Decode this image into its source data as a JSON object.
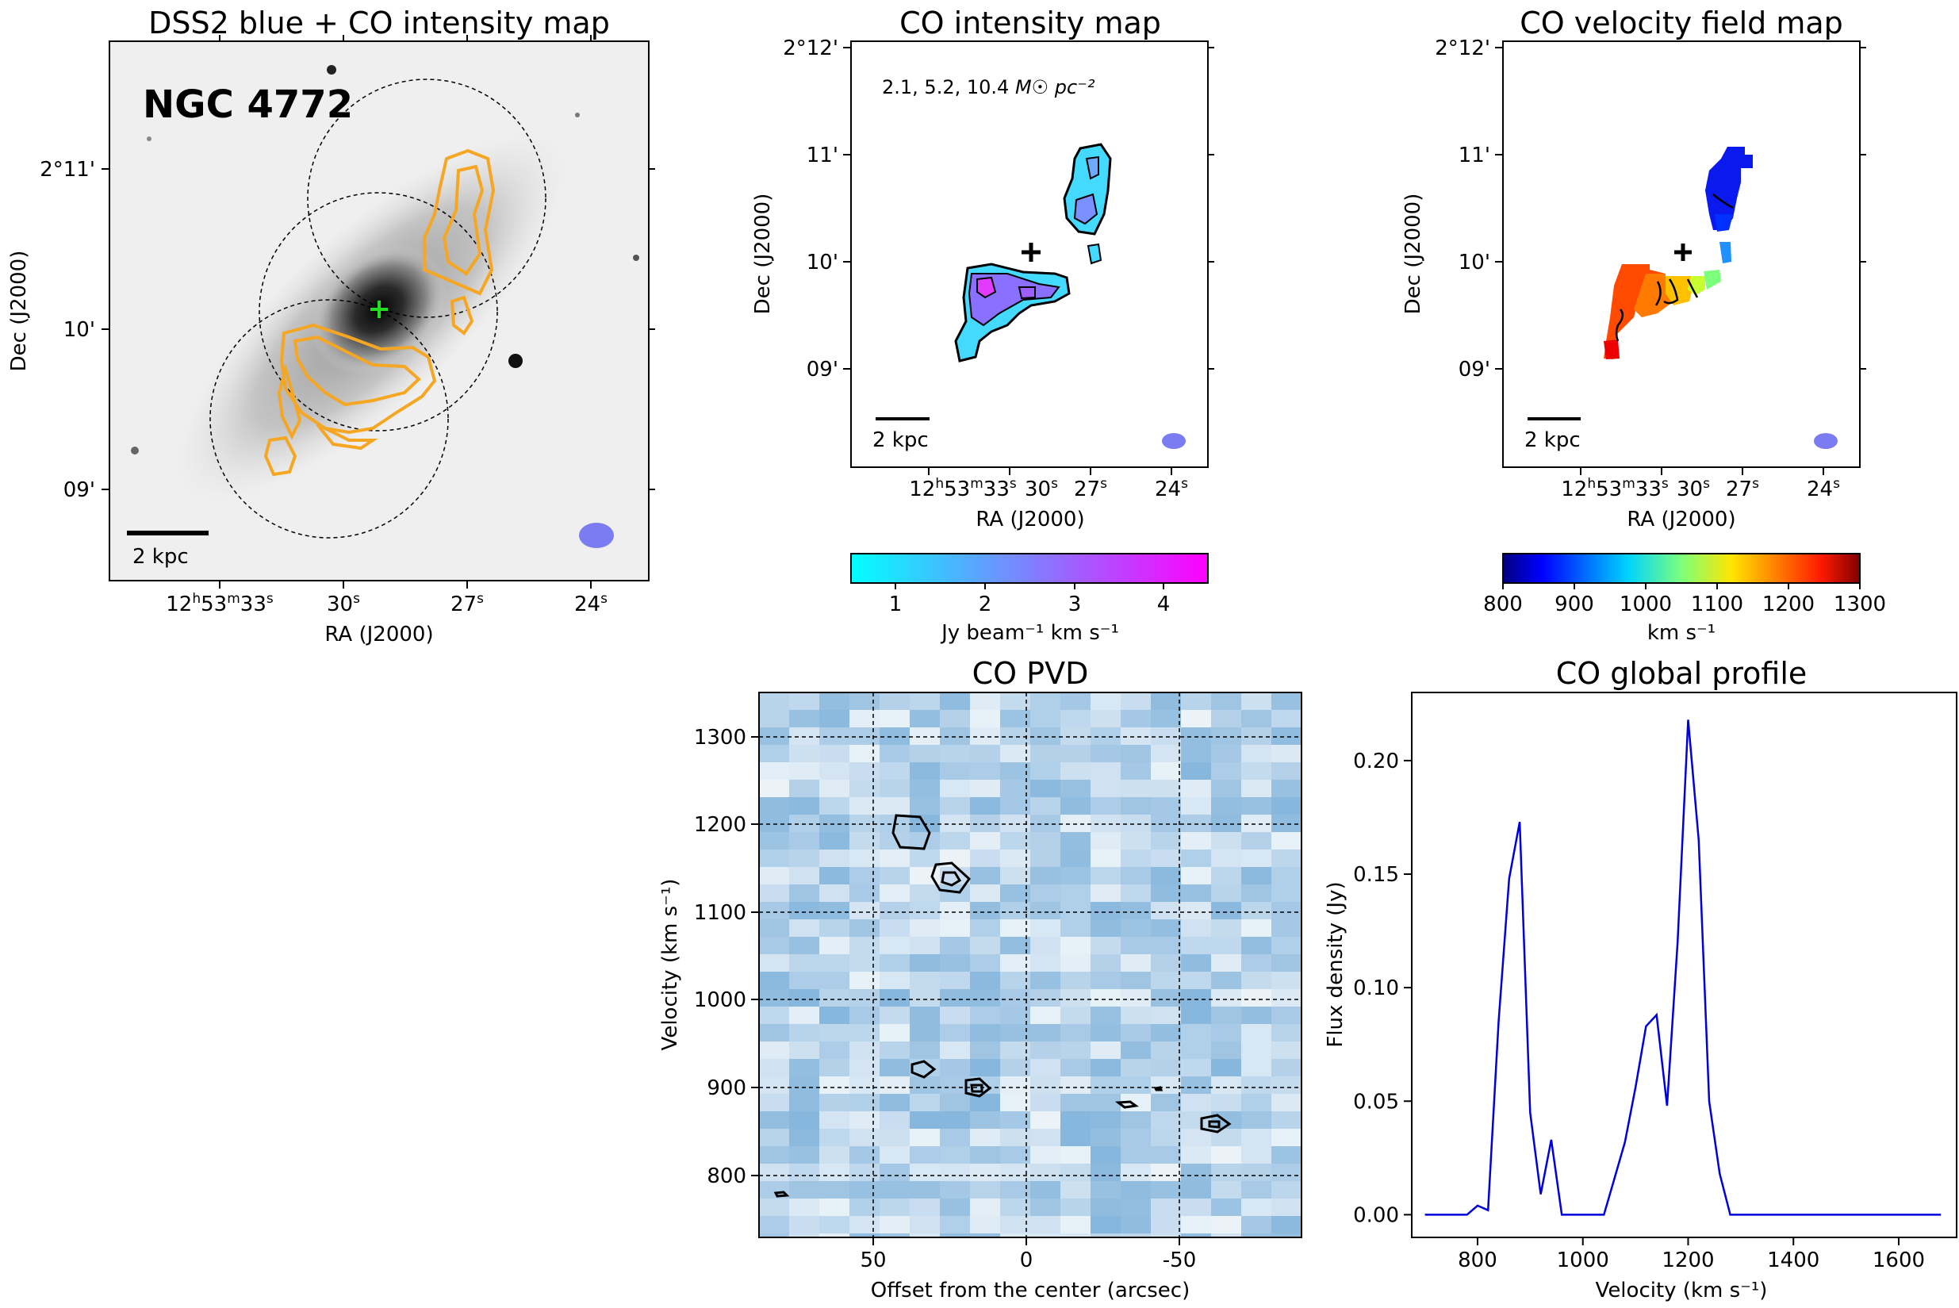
{
  "panels": {
    "dss": {
      "title": "DSS2 blue + CO intensity map",
      "galaxy": "NGC 4772",
      "xlabel": "RA (J2000)",
      "ylabel": "Dec (J2000)",
      "yticks": [
        "2°11'",
        "10'",
        "09'"
      ],
      "scalebar": "2 kpc"
    },
    "intensity": {
      "title": "CO intensity map",
      "contour_note": "2.1, 5.2, 10.4",
      "contour_unit": "M☉ pc⁻²",
      "xlabel": "RA (J2000)",
      "ylabel": "Dec (J2000)",
      "yticks": [
        "2°12'",
        "11'",
        "10'",
        "09'"
      ],
      "scalebar": "2 kpc",
      "colorbar_ticks": [
        "1",
        "2",
        "3",
        "4"
      ],
      "colorbar_label": "Jy beam⁻¹ km s⁻¹"
    },
    "velocity": {
      "title": "CO velocity field map",
      "xlabel": "RA (J2000)",
      "ylabel": "Dec (J2000)",
      "yticks": [
        "2°12'",
        "11'",
        "10'",
        "09'"
      ],
      "scalebar": "2 kpc",
      "colorbar_ticks": [
        "800",
        "900",
        "1000",
        "1100",
        "1200",
        "1300"
      ],
      "colorbar_label": "km s⁻¹"
    },
    "pvd": {
      "title": "CO PVD",
      "xlabel": "Offset from the center (arcsec)",
      "ylabel": "Velocity (km s⁻¹)",
      "xticks": [
        "50",
        "0",
        "-50"
      ],
      "yticks": [
        "1300",
        "1200",
        "1100",
        "1000",
        "900",
        "800"
      ]
    }
  },
  "ra_ticks": [
    {
      "h": "12",
      "m": "53",
      "s": "33"
    },
    {
      "s": "30"
    },
    {
      "s": "27"
    },
    {
      "s": "24"
    }
  ],
  "colors": {
    "contour_orange": "#F5A623",
    "beam": "#7B7BF2",
    "profile_line": "#0000DD",
    "cross_green": "#22DD22"
  },
  "chart_data": [
    {
      "type": "line",
      "title": "CO global profile",
      "xlabel": "Velocity (km s⁻¹)",
      "ylabel": "Flux density (Jy)",
      "xlim": [
        675,
        1710
      ],
      "ylim": [
        -0.01,
        0.23
      ],
      "xticks": [
        800,
        1000,
        1200,
        1400,
        1600
      ],
      "yticks": [
        0.0,
        0.05,
        0.1,
        0.15,
        0.2
      ],
      "x": [
        700,
        780,
        800,
        820,
        840,
        860,
        880,
        900,
        920,
        940,
        960,
        1040,
        1060,
        1080,
        1100,
        1120,
        1140,
        1160,
        1180,
        1200,
        1220,
        1240,
        1260,
        1280,
        1680
      ],
      "values": [
        0.0,
        0.0,
        0.004,
        0.002,
        0.085,
        0.148,
        0.173,
        0.045,
        0.009,
        0.033,
        0.0,
        0.0,
        0.016,
        0.032,
        0.056,
        0.083,
        0.088,
        0.048,
        0.12,
        0.218,
        0.165,
        0.05,
        0.018,
        0.0,
        0.0
      ]
    }
  ]
}
